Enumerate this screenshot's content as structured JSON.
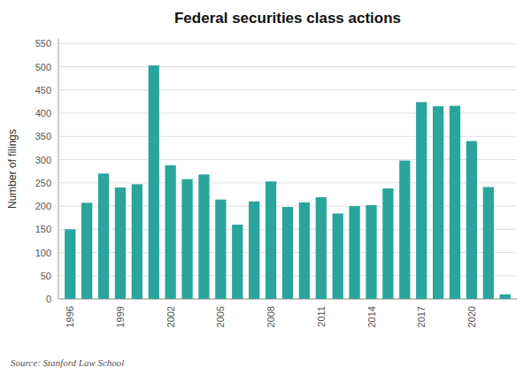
{
  "chart_data": {
    "type": "bar",
    "title": "Federal securities class actions",
    "ylabel": "Number of filings",
    "source": "Source: Stanford Law School",
    "categories": [
      "1996",
      null,
      null,
      "1999",
      null,
      null,
      "2002",
      null,
      null,
      "2005",
      null,
      null,
      "2008",
      null,
      null,
      "2011",
      null,
      null,
      "2014",
      null,
      null,
      "2017",
      null,
      null,
      "2020",
      null,
      null
    ],
    "values": [
      150,
      207,
      270,
      240,
      247,
      503,
      288,
      258,
      268,
      214,
      160,
      210,
      253,
      198,
      208,
      219,
      184,
      200,
      202,
      238,
      298,
      424,
      415,
      416,
      340,
      241,
      10
    ],
    "color": "#2aa59b",
    "ylim": [
      0,
      560
    ],
    "yticks": [
      0,
      50,
      100,
      150,
      200,
      250,
      300,
      350,
      400,
      450,
      500,
      550
    ],
    "grid": true
  }
}
